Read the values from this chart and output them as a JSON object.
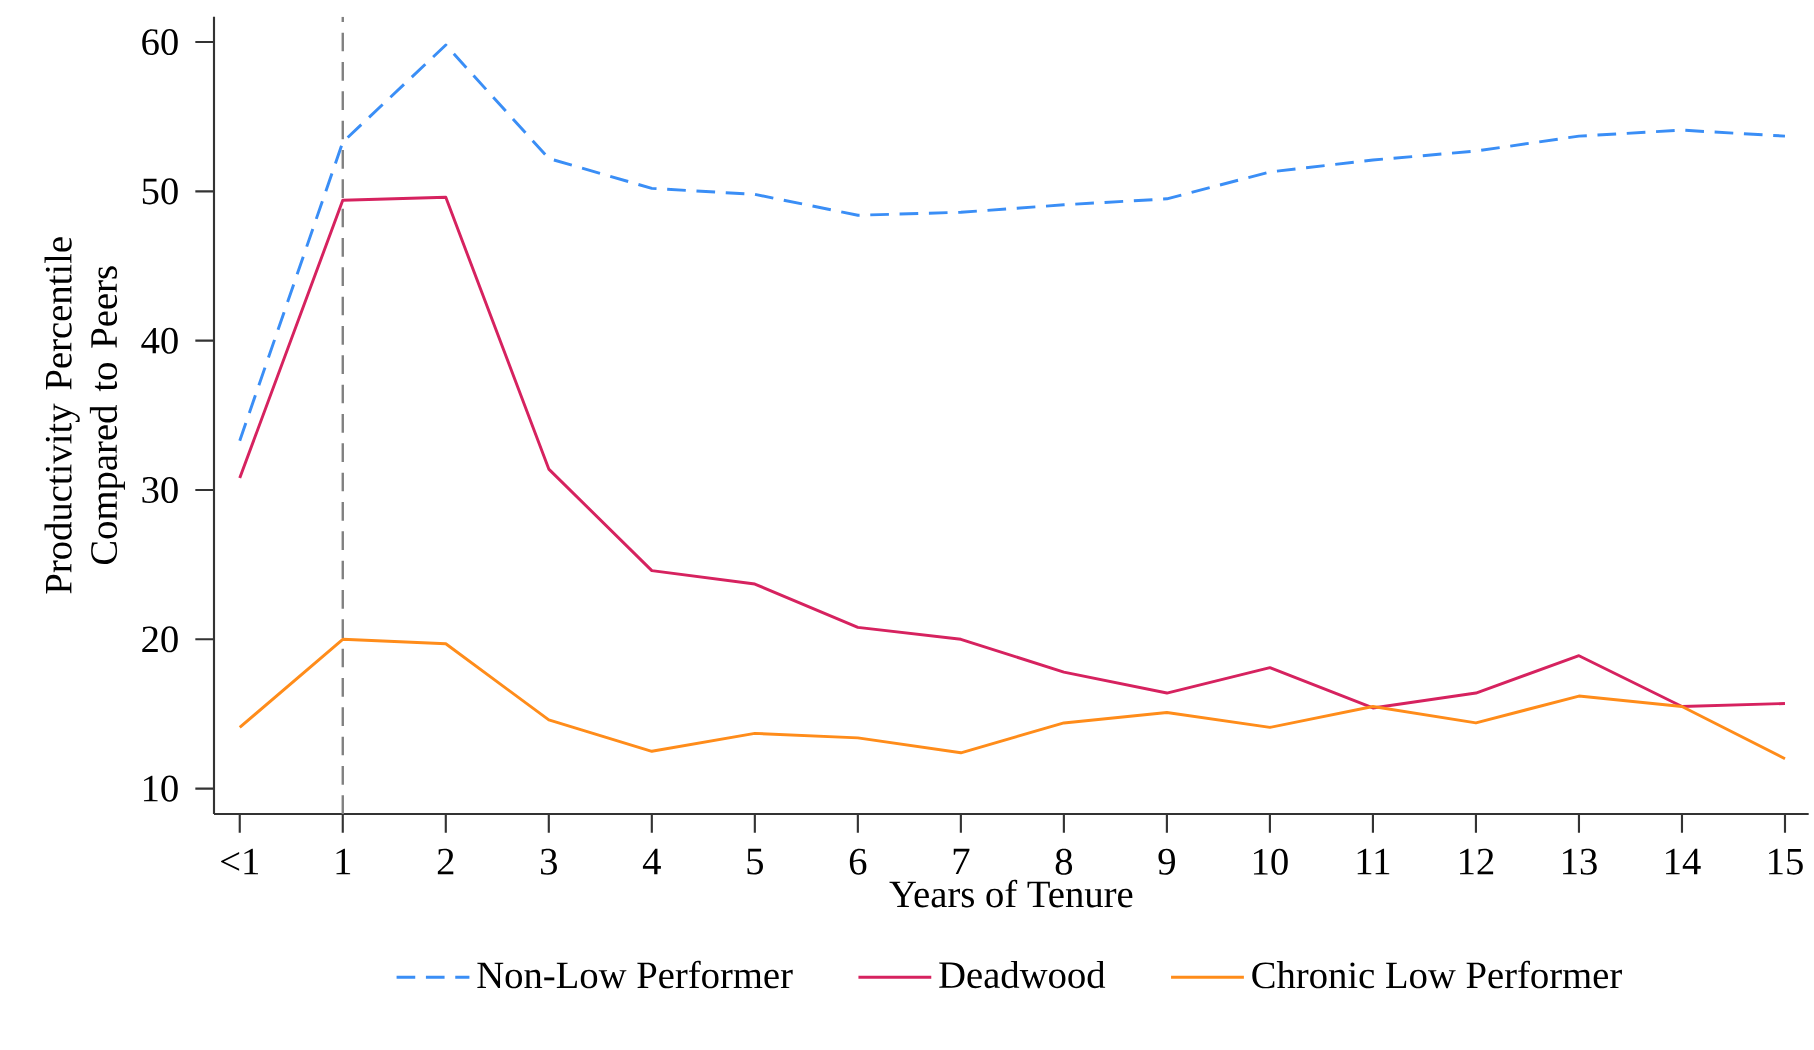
{
  "chart_data": {
    "type": "line",
    "xlabel": "Years of Tenure",
    "ylabel": "Productivity Percentile Compared to Peers",
    "categories": [
      "<1",
      "1",
      "2",
      "3",
      "4",
      "5",
      "6",
      "7",
      "8",
      "9",
      "10",
      "11",
      "12",
      "13",
      "14",
      "15"
    ],
    "ylim": [
      8.3,
      61.7
    ],
    "yticks": [
      10,
      20,
      30,
      40,
      50,
      60
    ],
    "series": [
      {
        "name": "Non-Low Performer",
        "color": "#3a8ef6",
        "line_style": "dashed",
        "values": [
          33.3,
          53.3,
          59.8,
          52.2,
          50.2,
          49.8,
          48.4,
          48.6,
          49.1,
          49.5,
          51.3,
          52.1,
          52.7,
          53.7,
          54.1,
          53.7
        ]
      },
      {
        "name": "Deadwood",
        "color": "#d6225f",
        "line_style": "solid",
        "values": [
          30.8,
          49.4,
          49.6,
          31.4,
          24.6,
          23.7,
          20.8,
          20.0,
          17.8,
          16.4,
          18.1,
          15.4,
          16.4,
          18.9,
          15.5,
          15.7
        ]
      },
      {
        "name": "Chronic Low Performer",
        "color": "#ff8c1a",
        "line_style": "solid",
        "values": [
          14.1,
          20.0,
          19.7,
          14.6,
          12.5,
          13.7,
          13.4,
          12.4,
          14.4,
          15.1,
          14.1,
          15.5,
          14.4,
          16.2,
          15.5,
          12.0
        ]
      }
    ],
    "ref_lines": [
      {
        "axis": "x",
        "value": "1",
        "color": "#808080",
        "line_style": "dashed"
      }
    ],
    "legend": "bottom",
    "grid": false,
    "marker": "none"
  }
}
